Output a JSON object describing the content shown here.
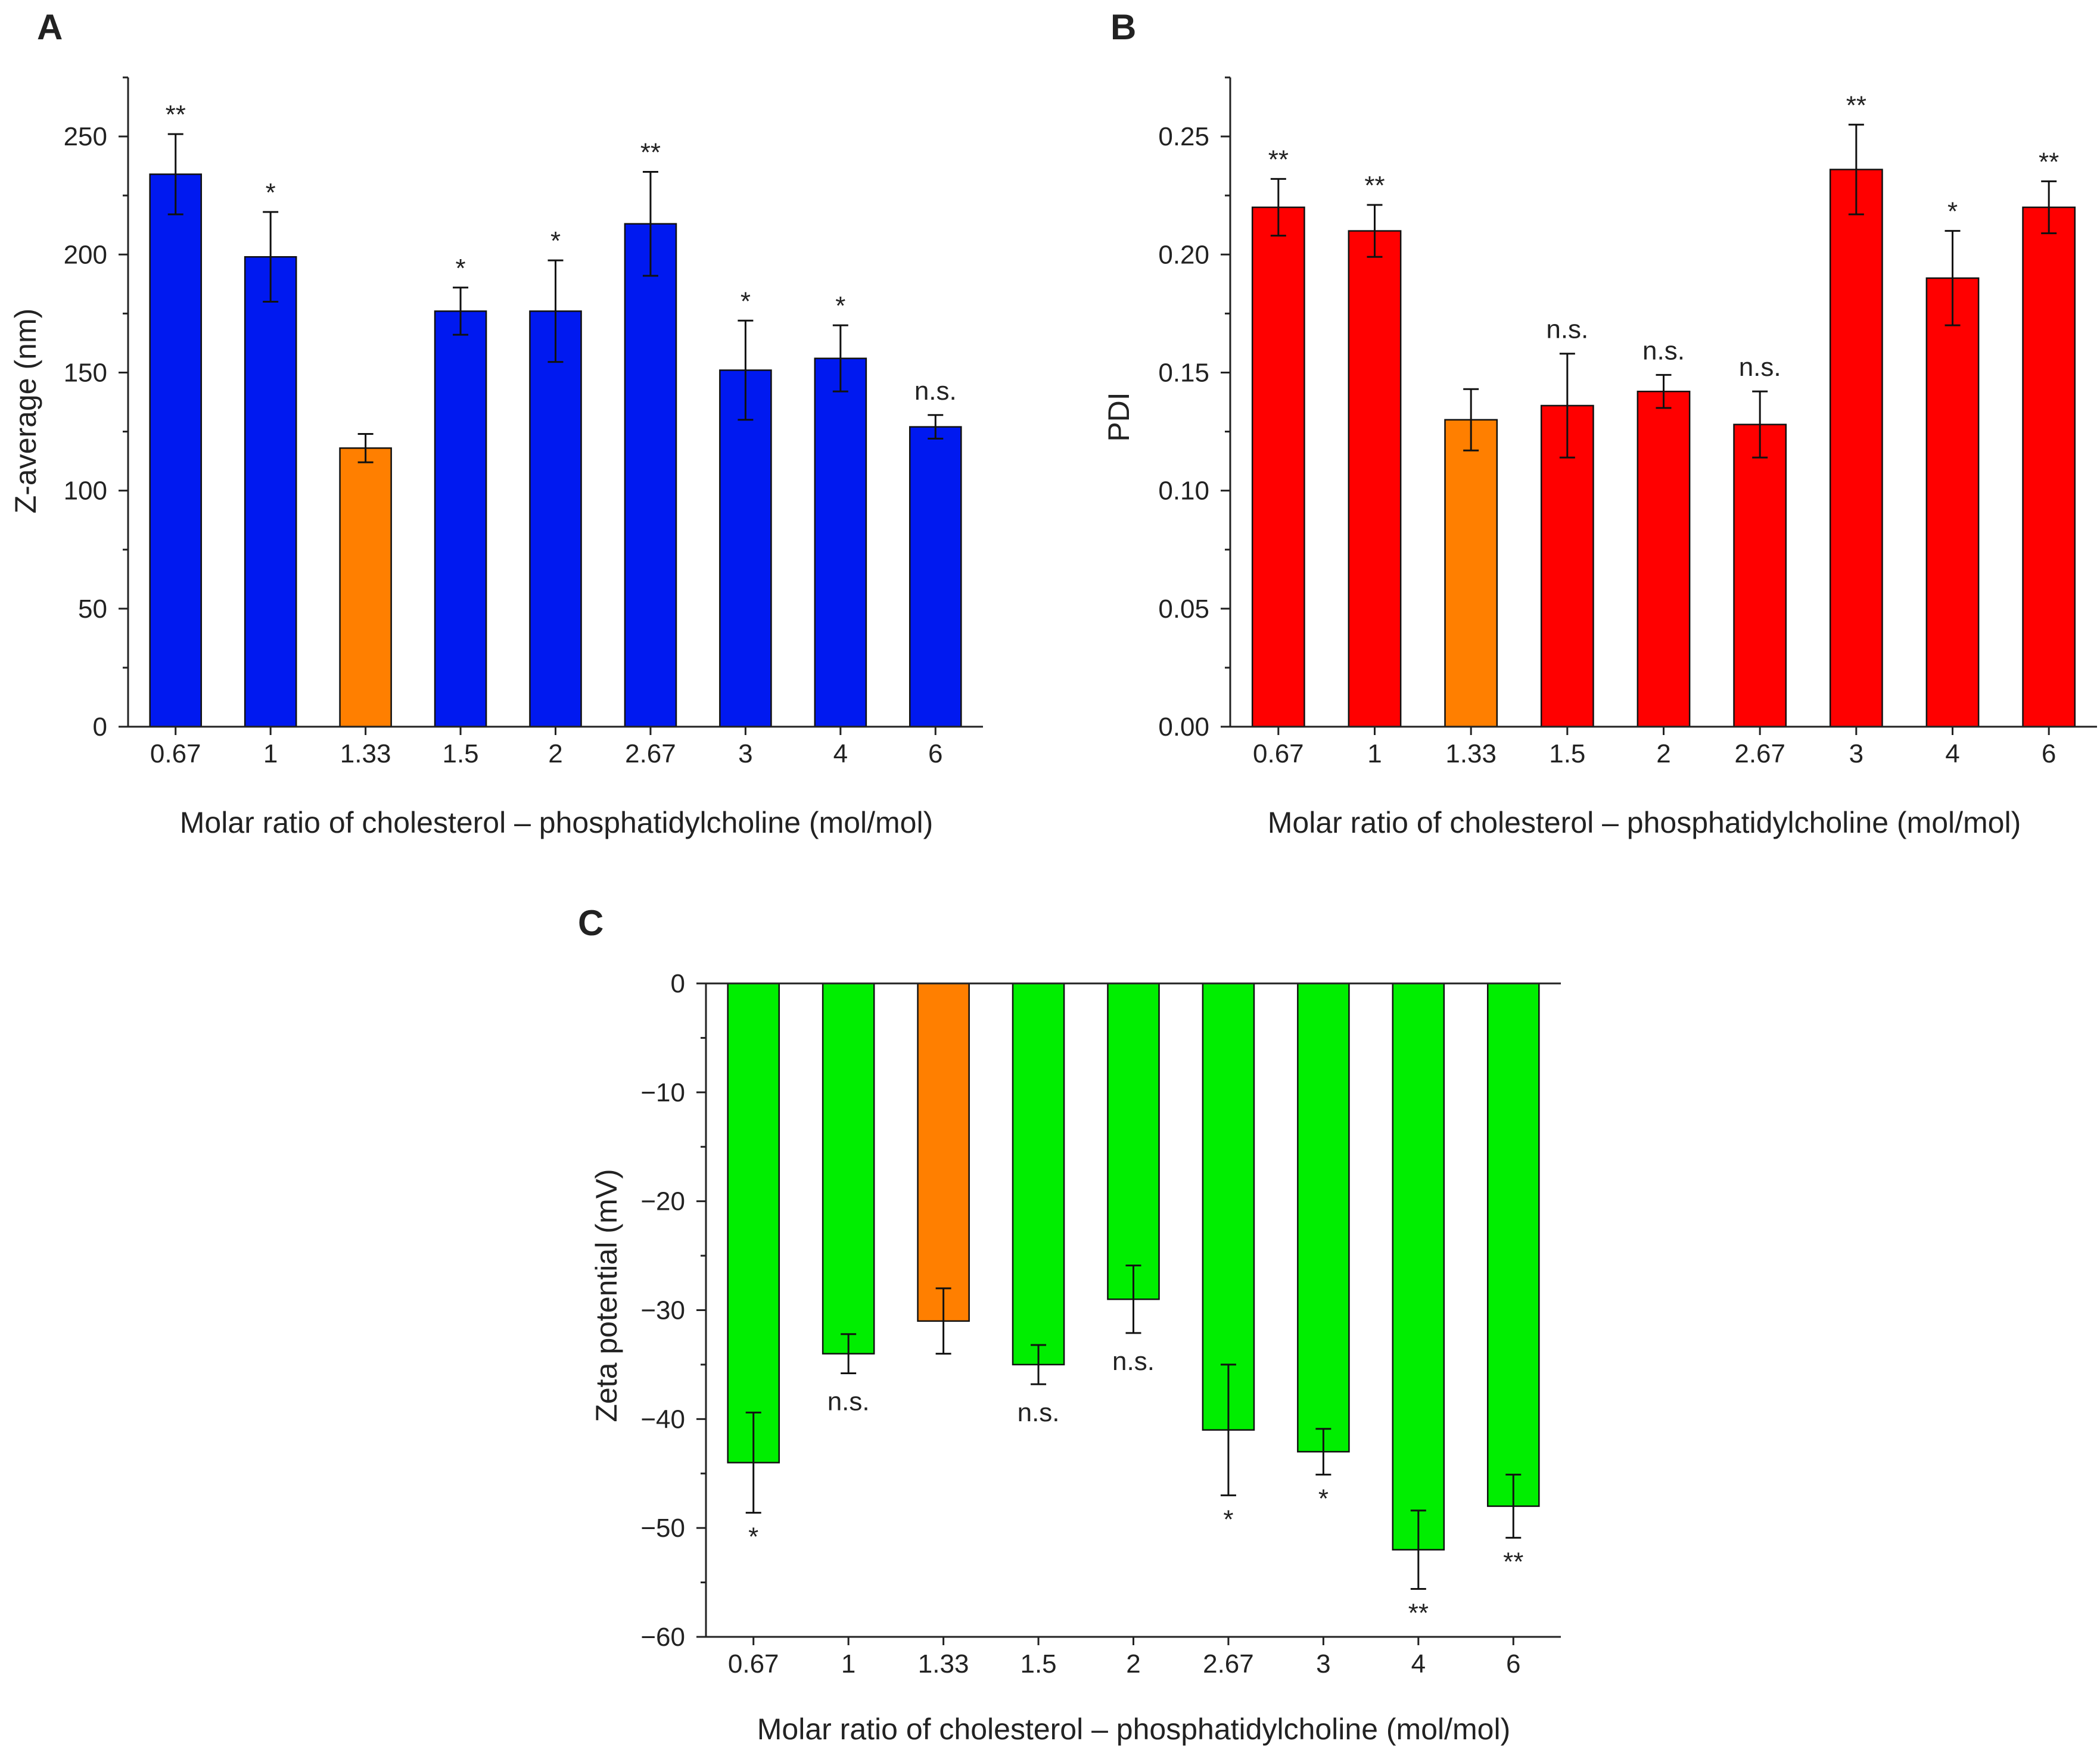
{
  "colors": {
    "blue": "#0019f0",
    "red": "#ff0000",
    "green": "#00ee00",
    "orange": "#ff7f00",
    "axis": "#222222"
  },
  "chart_data": [
    {
      "panel": "A",
      "type": "bar",
      "xlabel": "Molar ratio of cholesterol – phosphatidylcholine (mol/mol)",
      "ylabel": "Z-average (nm)",
      "categories": [
        "0.67",
        "1",
        "1.33",
        "1.5",
        "2",
        "2.67",
        "3",
        "4",
        "6"
      ],
      "values": [
        234,
        199,
        118,
        176,
        176,
        213,
        151,
        156,
        127
      ],
      "errors": [
        17,
        19,
        6,
        10,
        21.5,
        22,
        21,
        14,
        5
      ],
      "significance": [
        "**",
        "*",
        "",
        "*",
        "*",
        "**",
        "*",
        "*",
        "n.s."
      ],
      "bar_colors": [
        "blue",
        "blue",
        "orange",
        "blue",
        "blue",
        "blue",
        "blue",
        "blue",
        "blue"
      ],
      "ylim": [
        0,
        275
      ],
      "yticks": [
        0,
        50,
        100,
        150,
        200,
        250
      ],
      "ytick_labels": [
        "0",
        "50",
        "100",
        "150",
        "200",
        "250"
      ]
    },
    {
      "panel": "B",
      "type": "bar",
      "xlabel": "Molar ratio of cholesterol – phosphatidylcholine (mol/mol)",
      "ylabel": "PDI",
      "categories": [
        "0.67",
        "1",
        "1.33",
        "1.5",
        "2",
        "2.67",
        "3",
        "4",
        "6"
      ],
      "values": [
        0.22,
        0.21,
        0.13,
        0.136,
        0.142,
        0.128,
        0.236,
        0.19,
        0.22
      ],
      "errors": [
        0.012,
        0.011,
        0.013,
        0.022,
        0.007,
        0.014,
        0.019,
        0.02,
        0.011
      ],
      "significance": [
        "**",
        "**",
        "",
        "n.s.",
        "n.s.",
        "n.s.",
        "**",
        "*",
        "**"
      ],
      "bar_colors": [
        "red",
        "red",
        "orange",
        "red",
        "red",
        "red",
        "red",
        "red",
        "red"
      ],
      "ylim": [
        0,
        0.275
      ],
      "yticks": [
        0,
        0.05,
        0.1,
        0.15,
        0.2,
        0.25
      ],
      "ytick_labels": [
        "0.00",
        "0.05",
        "0.10",
        "0.15",
        "0.20",
        "0.25"
      ]
    },
    {
      "panel": "C",
      "type": "bar",
      "xlabel": "Molar ratio of cholesterol – phosphatidylcholine (mol/mol)",
      "ylabel": "Zeta potential (mV)",
      "categories": [
        "0.67",
        "1",
        "1.33",
        "1.5",
        "2",
        "2.67",
        "3",
        "4",
        "6"
      ],
      "values": [
        -44,
        -34,
        -31,
        -35,
        -29,
        -41,
        -43,
        -52,
        -48
      ],
      "errors": [
        4.6,
        1.8,
        3,
        1.8,
        3.1,
        6,
        2.1,
        3.6,
        2.9
      ],
      "significance": [
        "*",
        "n.s.",
        "",
        "n.s.",
        "n.s.",
        "*",
        "*",
        "**",
        "**"
      ],
      "bar_colors": [
        "green",
        "green",
        "orange",
        "green",
        "green",
        "green",
        "green",
        "green",
        "green"
      ],
      "ylim": [
        -60,
        0
      ],
      "yticks": [
        0,
        -10,
        -20,
        -30,
        -40,
        -50,
        -60
      ],
      "ytick_labels": [
        "0",
        "−10",
        "−20",
        "−30",
        "−40",
        "−50",
        "−60"
      ]
    }
  ]
}
